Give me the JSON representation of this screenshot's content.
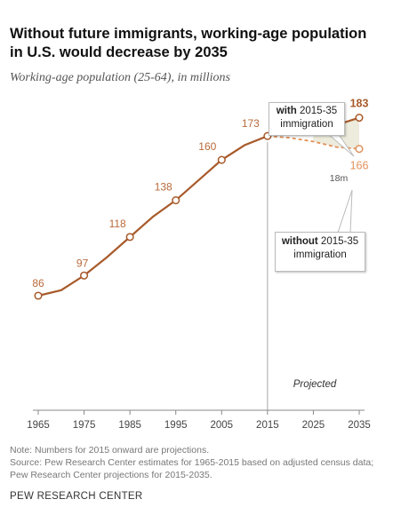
{
  "header": {
    "title": "Without future immigrants, working-age population in U.S. would decrease by 2035",
    "subtitle": "Working-age population (25-64), in millions"
  },
  "annotations": {
    "with_bold": "with",
    "with_rest": "2015-35",
    "with_line2": "immigration",
    "without_bold": "without",
    "without_rest": "2015-35",
    "without_line2": "immigration",
    "gap": "18m",
    "projected": "Projected"
  },
  "footer": {
    "note": "Note: Numbers for 2015 onward are projections.",
    "source": "Source: Pew Research Center estimates for 1965-2015 based on adjusted census data; Pew Research Center projections for 2015-2035.",
    "brand": "PEW RESEARCH CENTER"
  },
  "colors": {
    "with_line": "#a85a2a",
    "without_line": "#e0915a",
    "label": "#b86a3a",
    "gap_fill": "#ecebdc",
    "divider": "#aaaaaa"
  },
  "chart_data": {
    "type": "line",
    "x_ticks": [
      1965,
      1975,
      1985,
      1995,
      2005,
      2015,
      2025,
      2035
    ],
    "xlim": [
      1965,
      2035
    ],
    "ylim": [
      60,
      200
    ],
    "projection_start": 2015,
    "series": [
      {
        "name": "with 2015-35 immigration",
        "style": "solid",
        "points": [
          {
            "x": 1965,
            "y": 86,
            "label": "86"
          },
          {
            "x": 1970,
            "y": 89
          },
          {
            "x": 1975,
            "y": 97,
            "label": "97"
          },
          {
            "x": 1980,
            "y": 107
          },
          {
            "x": 1985,
            "y": 118,
            "label": "118"
          },
          {
            "x": 1990,
            "y": 129
          },
          {
            "x": 1995,
            "y": 138,
            "label": "138"
          },
          {
            "x": 2000,
            "y": 149
          },
          {
            "x": 2005,
            "y": 160,
            "label": "160"
          },
          {
            "x": 2010,
            "y": 168
          },
          {
            "x": 2015,
            "y": 173,
            "label": "173"
          },
          {
            "x": 2020,
            "y": 177
          },
          {
            "x": 2025,
            "y": 178
          },
          {
            "x": 2030,
            "y": 179
          },
          {
            "x": 2035,
            "y": 183,
            "label": "183"
          }
        ]
      },
      {
        "name": "without 2015-35 immigration",
        "style": "dashed",
        "points": [
          {
            "x": 2015,
            "y": 173
          },
          {
            "x": 2020,
            "y": 172
          },
          {
            "x": 2025,
            "y": 170
          },
          {
            "x": 2030,
            "y": 167
          },
          {
            "x": 2035,
            "y": 166,
            "label": "166"
          }
        ]
      }
    ],
    "markers": [
      1965,
      1975,
      1985,
      1995,
      2005,
      2015,
      2035
    ]
  }
}
